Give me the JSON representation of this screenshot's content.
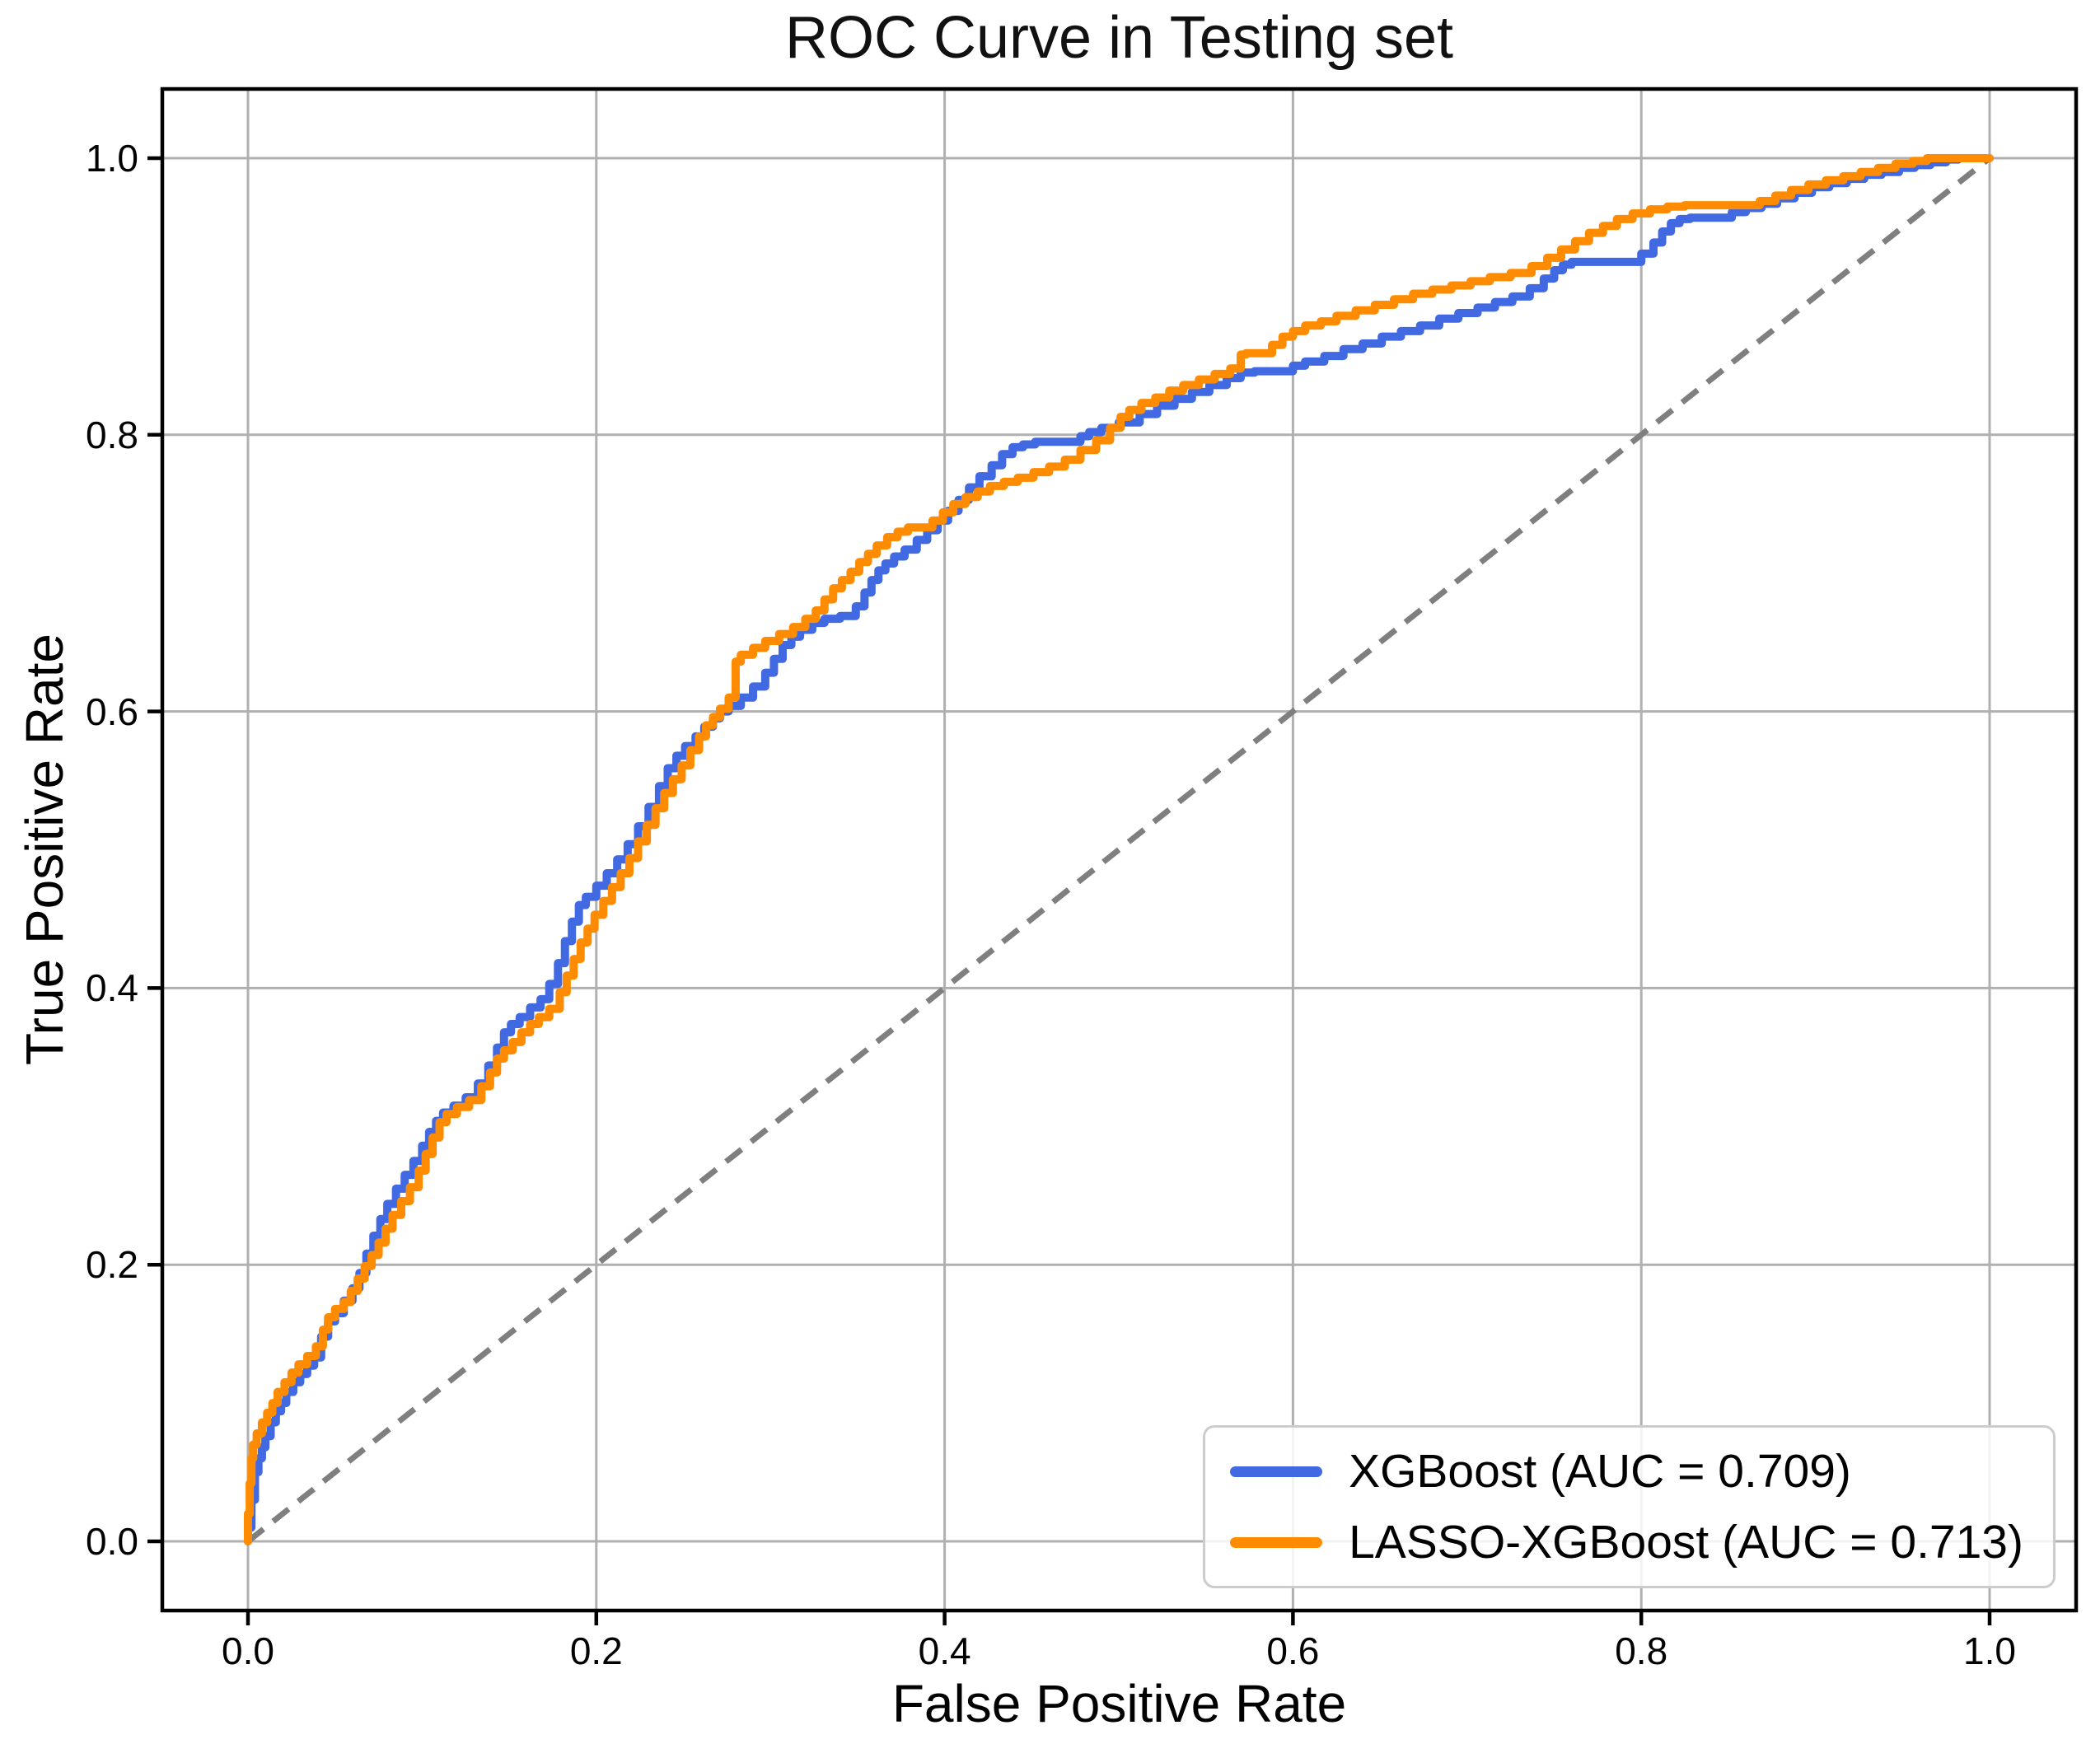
{
  "chart_data": {
    "type": "line",
    "title": "ROC Curve in Testing set",
    "xlabel": "False Positive Rate",
    "ylabel": "True Positive Rate",
    "xlim": [
      -0.05,
      1.05
    ],
    "ylim": [
      -0.05,
      1.05
    ],
    "grid": true,
    "legend_position": "lower right",
    "x_ticks": [
      0.0,
      0.2,
      0.4,
      0.6,
      0.8,
      1.0
    ],
    "y_ticks": [
      0.0,
      0.2,
      0.4,
      0.6,
      0.8,
      1.0
    ],
    "x_tick_labels": [
      "0.0",
      "0.2",
      "0.4",
      "0.6",
      "0.8",
      "1.0"
    ],
    "y_tick_labels": [
      "0.0",
      "0.2",
      "0.4",
      "0.6",
      "0.8",
      "1.0"
    ],
    "style": {
      "grid_color": "#b0b0b0",
      "spine_color": "#000000",
      "background": "#ffffff",
      "diagonal_color": "#7f7f7f"
    },
    "series": [
      {
        "name": "XGBoost (AUC = 0.709)",
        "auc": 0.709,
        "color": "#4169E1",
        "line_width": 10,
        "line_style": "step",
        "points": [
          [
            0.0,
            0.0
          ],
          [
            0.002,
            0.01
          ],
          [
            0.004,
            0.03
          ],
          [
            0.006,
            0.05
          ],
          [
            0.008,
            0.06
          ],
          [
            0.01,
            0.068
          ],
          [
            0.013,
            0.076
          ],
          [
            0.016,
            0.086
          ],
          [
            0.019,
            0.094
          ],
          [
            0.022,
            0.1
          ],
          [
            0.026,
            0.108
          ],
          [
            0.03,
            0.115
          ],
          [
            0.034,
            0.121
          ],
          [
            0.038,
            0.127
          ],
          [
            0.042,
            0.133
          ],
          [
            0.046,
            0.148
          ],
          [
            0.05,
            0.159
          ],
          [
            0.055,
            0.165
          ],
          [
            0.06,
            0.174
          ],
          [
            0.064,
            0.183
          ],
          [
            0.068,
            0.194
          ],
          [
            0.072,
            0.208
          ],
          [
            0.076,
            0.221
          ],
          [
            0.08,
            0.233
          ],
          [
            0.085,
            0.244
          ],
          [
            0.09,
            0.255
          ],
          [
            0.095,
            0.265
          ],
          [
            0.1,
            0.275
          ],
          [
            0.104,
            0.286
          ],
          [
            0.108,
            0.296
          ],
          [
            0.112,
            0.304
          ],
          [
            0.118,
            0.31
          ],
          [
            0.125,
            0.315
          ],
          [
            0.132,
            0.321
          ],
          [
            0.138,
            0.331
          ],
          [
            0.143,
            0.344
          ],
          [
            0.147,
            0.357
          ],
          [
            0.151,
            0.368
          ],
          [
            0.156,
            0.374
          ],
          [
            0.162,
            0.379
          ],
          [
            0.168,
            0.386
          ],
          [
            0.173,
            0.392
          ],
          [
            0.178,
            0.403
          ],
          [
            0.182,
            0.418
          ],
          [
            0.186,
            0.434
          ],
          [
            0.19,
            0.448
          ],
          [
            0.194,
            0.46
          ],
          [
            0.2,
            0.466
          ],
          [
            0.206,
            0.474
          ],
          [
            0.212,
            0.483
          ],
          [
            0.218,
            0.493
          ],
          [
            0.224,
            0.504
          ],
          [
            0.23,
            0.517
          ],
          [
            0.236,
            0.531
          ],
          [
            0.241,
            0.546
          ],
          [
            0.246,
            0.559
          ],
          [
            0.251,
            0.568
          ],
          [
            0.257,
            0.575
          ],
          [
            0.262,
            0.582
          ],
          [
            0.267,
            0.589
          ],
          [
            0.271,
            0.595
          ],
          [
            0.276,
            0.6
          ],
          [
            0.283,
            0.604
          ],
          [
            0.29,
            0.61
          ],
          [
            0.297,
            0.618
          ],
          [
            0.302,
            0.628
          ],
          [
            0.307,
            0.638
          ],
          [
            0.312,
            0.648
          ],
          [
            0.317,
            0.654
          ],
          [
            0.324,
            0.659
          ],
          [
            0.331,
            0.664
          ],
          [
            0.34,
            0.667
          ],
          [
            0.349,
            0.669
          ],
          [
            0.354,
            0.676
          ],
          [
            0.358,
            0.686
          ],
          [
            0.362,
            0.695
          ],
          [
            0.366,
            0.702
          ],
          [
            0.371,
            0.707
          ],
          [
            0.377,
            0.712
          ],
          [
            0.384,
            0.717
          ],
          [
            0.39,
            0.724
          ],
          [
            0.396,
            0.731
          ],
          [
            0.402,
            0.738
          ],
          [
            0.408,
            0.745
          ],
          [
            0.414,
            0.753
          ],
          [
            0.42,
            0.762
          ],
          [
            0.427,
            0.77
          ],
          [
            0.433,
            0.778
          ],
          [
            0.439,
            0.786
          ],
          [
            0.445,
            0.791
          ],
          [
            0.452,
            0.793
          ],
          [
            0.478,
            0.795
          ],
          [
            0.483,
            0.799
          ],
          [
            0.49,
            0.802
          ],
          [
            0.5,
            0.805
          ],
          [
            0.512,
            0.809
          ],
          [
            0.522,
            0.815
          ],
          [
            0.532,
            0.821
          ],
          [
            0.542,
            0.826
          ],
          [
            0.552,
            0.831
          ],
          [
            0.562,
            0.836
          ],
          [
            0.57,
            0.841
          ],
          [
            0.578,
            0.845
          ],
          [
            0.6,
            0.846
          ],
          [
            0.607,
            0.85
          ],
          [
            0.618,
            0.853
          ],
          [
            0.629,
            0.857
          ],
          [
            0.64,
            0.862
          ],
          [
            0.651,
            0.866
          ],
          [
            0.662,
            0.871
          ],
          [
            0.673,
            0.875
          ],
          [
            0.684,
            0.879
          ],
          [
            0.695,
            0.884
          ],
          [
            0.706,
            0.888
          ],
          [
            0.716,
            0.892
          ],
          [
            0.726,
            0.896
          ],
          [
            0.736,
            0.9
          ],
          [
            0.744,
            0.906
          ],
          [
            0.75,
            0.913
          ],
          [
            0.755,
            0.919
          ],
          [
            0.76,
            0.923
          ],
          [
            0.8,
            0.925
          ],
          [
            0.807,
            0.931
          ],
          [
            0.812,
            0.939
          ],
          [
            0.817,
            0.947
          ],
          [
            0.822,
            0.953
          ],
          [
            0.828,
            0.956
          ],
          [
            0.852,
            0.957
          ],
          [
            0.86,
            0.961
          ],
          [
            0.869,
            0.964
          ],
          [
            0.878,
            0.967
          ],
          [
            0.888,
            0.971
          ],
          [
            0.898,
            0.975
          ],
          [
            0.908,
            0.979
          ],
          [
            0.918,
            0.982
          ],
          [
            0.928,
            0.985
          ],
          [
            0.938,
            0.988
          ],
          [
            0.948,
            0.99
          ],
          [
            0.957,
            0.993
          ],
          [
            0.966,
            0.995
          ],
          [
            0.975,
            0.997
          ],
          [
            0.982,
            0.999
          ],
          [
            0.988,
            1.0
          ],
          [
            1.0,
            1.0
          ]
        ]
      },
      {
        "name": "LASSO-XGBoost (AUC = 0.713)",
        "auc": 0.713,
        "color": "#FF8C00",
        "line_width": 10,
        "line_style": "step",
        "points": [
          [
            0.0,
            0.0
          ],
          [
            0.001,
            0.02
          ],
          [
            0.002,
            0.042
          ],
          [
            0.003,
            0.06
          ],
          [
            0.005,
            0.07
          ],
          [
            0.008,
            0.078
          ],
          [
            0.011,
            0.086
          ],
          [
            0.014,
            0.093
          ],
          [
            0.017,
            0.1
          ],
          [
            0.021,
            0.108
          ],
          [
            0.025,
            0.115
          ],
          [
            0.029,
            0.122
          ],
          [
            0.034,
            0.128
          ],
          [
            0.039,
            0.134
          ],
          [
            0.043,
            0.141
          ],
          [
            0.046,
            0.153
          ],
          [
            0.05,
            0.162
          ],
          [
            0.055,
            0.168
          ],
          [
            0.059,
            0.173
          ],
          [
            0.063,
            0.181
          ],
          [
            0.067,
            0.19
          ],
          [
            0.071,
            0.199
          ],
          [
            0.075,
            0.207
          ],
          [
            0.079,
            0.216
          ],
          [
            0.083,
            0.226
          ],
          [
            0.088,
            0.236
          ],
          [
            0.093,
            0.246
          ],
          [
            0.098,
            0.256
          ],
          [
            0.102,
            0.268
          ],
          [
            0.106,
            0.28
          ],
          [
            0.11,
            0.292
          ],
          [
            0.114,
            0.303
          ],
          [
            0.12,
            0.309
          ],
          [
            0.127,
            0.314
          ],
          [
            0.134,
            0.319
          ],
          [
            0.139,
            0.329
          ],
          [
            0.143,
            0.339
          ],
          [
            0.147,
            0.349
          ],
          [
            0.152,
            0.355
          ],
          [
            0.157,
            0.361
          ],
          [
            0.162,
            0.368
          ],
          [
            0.167,
            0.374
          ],
          [
            0.173,
            0.379
          ],
          [
            0.179,
            0.385
          ],
          [
            0.183,
            0.397
          ],
          [
            0.187,
            0.409
          ],
          [
            0.191,
            0.421
          ],
          [
            0.195,
            0.433
          ],
          [
            0.199,
            0.443
          ],
          [
            0.204,
            0.453
          ],
          [
            0.209,
            0.463
          ],
          [
            0.214,
            0.473
          ],
          [
            0.219,
            0.483
          ],
          [
            0.224,
            0.494
          ],
          [
            0.229,
            0.506
          ],
          [
            0.234,
            0.518
          ],
          [
            0.239,
            0.53
          ],
          [
            0.244,
            0.541
          ],
          [
            0.249,
            0.551
          ],
          [
            0.254,
            0.561
          ],
          [
            0.259,
            0.572
          ],
          [
            0.263,
            0.582
          ],
          [
            0.267,
            0.59
          ],
          [
            0.271,
            0.596
          ],
          [
            0.276,
            0.602
          ],
          [
            0.28,
            0.61
          ],
          [
            0.283,
            0.636
          ],
          [
            0.29,
            0.641
          ],
          [
            0.297,
            0.646
          ],
          [
            0.305,
            0.651
          ],
          [
            0.313,
            0.656
          ],
          [
            0.32,
            0.661
          ],
          [
            0.326,
            0.667
          ],
          [
            0.331,
            0.673
          ],
          [
            0.336,
            0.681
          ],
          [
            0.341,
            0.689
          ],
          [
            0.346,
            0.695
          ],
          [
            0.351,
            0.701
          ],
          [
            0.356,
            0.708
          ],
          [
            0.361,
            0.714
          ],
          [
            0.367,
            0.72
          ],
          [
            0.373,
            0.726
          ],
          [
            0.379,
            0.73
          ],
          [
            0.393,
            0.733
          ],
          [
            0.399,
            0.738
          ],
          [
            0.405,
            0.744
          ],
          [
            0.412,
            0.75
          ],
          [
            0.419,
            0.755
          ],
          [
            0.426,
            0.759
          ],
          [
            0.434,
            0.763
          ],
          [
            0.442,
            0.766
          ],
          [
            0.451,
            0.769
          ],
          [
            0.46,
            0.773
          ],
          [
            0.469,
            0.777
          ],
          [
            0.478,
            0.782
          ],
          [
            0.487,
            0.789
          ],
          [
            0.495,
            0.796
          ],
          [
            0.501,
            0.805
          ],
          [
            0.506,
            0.813
          ],
          [
            0.513,
            0.818
          ],
          [
            0.521,
            0.823
          ],
          [
            0.529,
            0.827
          ],
          [
            0.537,
            0.832
          ],
          [
            0.546,
            0.836
          ],
          [
            0.555,
            0.84
          ],
          [
            0.564,
            0.844
          ],
          [
            0.57,
            0.848
          ],
          [
            0.573,
            0.858
          ],
          [
            0.588,
            0.859
          ],
          [
            0.594,
            0.865
          ],
          [
            0.6,
            0.871
          ],
          [
            0.607,
            0.875
          ],
          [
            0.616,
            0.879
          ],
          [
            0.625,
            0.882
          ],
          [
            0.636,
            0.886
          ],
          [
            0.647,
            0.89
          ],
          [
            0.658,
            0.894
          ],
          [
            0.669,
            0.898
          ],
          [
            0.68,
            0.902
          ],
          [
            0.691,
            0.905
          ],
          [
            0.702,
            0.908
          ],
          [
            0.713,
            0.911
          ],
          [
            0.725,
            0.914
          ],
          [
            0.737,
            0.917
          ],
          [
            0.746,
            0.922
          ],
          [
            0.754,
            0.928
          ],
          [
            0.762,
            0.934
          ],
          [
            0.77,
            0.94
          ],
          [
            0.778,
            0.946
          ],
          [
            0.786,
            0.951
          ],
          [
            0.795,
            0.956
          ],
          [
            0.805,
            0.96
          ],
          [
            0.815,
            0.963
          ],
          [
            0.825,
            0.965
          ],
          [
            0.868,
            0.966
          ],
          [
            0.877,
            0.969
          ],
          [
            0.886,
            0.973
          ],
          [
            0.896,
            0.977
          ],
          [
            0.906,
            0.981
          ],
          [
            0.916,
            0.984
          ],
          [
            0.926,
            0.987
          ],
          [
            0.936,
            0.99
          ],
          [
            0.946,
            0.993
          ],
          [
            0.956,
            0.996
          ],
          [
            0.964,
            0.998
          ],
          [
            0.971,
            1.0
          ],
          [
            1.0,
            1.0
          ]
        ]
      },
      {
        "name": "chance-diagonal",
        "color": "#7f7f7f",
        "line_width": 7,
        "line_style": "dashed",
        "points": [
          [
            0.0,
            0.0
          ],
          [
            1.0,
            1.0
          ]
        ]
      }
    ]
  }
}
